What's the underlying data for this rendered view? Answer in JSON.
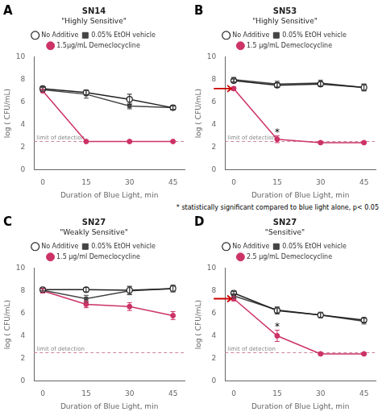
{
  "chart_data": [
    {
      "type": "line",
      "panel_label": "A",
      "title": "SN14",
      "subtitle": "\"Highly Sensitive\"",
      "xlabel": "Duration of Blue Light, min",
      "ylabel": "log ( CFU/mL)",
      "x": [
        0,
        15,
        30,
        45
      ],
      "xlim": [
        -3,
        49
      ],
      "xticks": [
        0,
        15,
        30,
        45
      ],
      "ylim": [
        0,
        10
      ],
      "yticks": [
        0,
        2,
        4,
        6,
        8,
        10
      ],
      "grid": false,
      "legend": "top",
      "series": [
        {
          "name": "No Additive",
          "color": "#222222",
          "marker": "open_circle",
          "values": [
            7.2,
            6.85,
            6.25,
            5.5
          ],
          "errors": [
            0.15,
            0.2,
            0.45,
            0.15
          ]
        },
        {
          "name": "0.05% EtOH vehicle",
          "color": "#444444",
          "marker": "square",
          "values": [
            7.1,
            6.7,
            5.65,
            5.5
          ],
          "errors": [
            0.2,
            0.35,
            0.25,
            0.2
          ]
        },
        {
          "name": "1.5μg/mL Demeclocycline",
          "color": "#cc3366",
          "marker": "circle",
          "values": [
            7.0,
            2.5,
            2.5,
            2.5
          ],
          "errors": [
            0.15,
            0.05,
            0.05,
            0.05
          ]
        }
      ],
      "limit_line": {
        "label": "limit of detection",
        "value": 2.5,
        "color": "#cc8899",
        "line_style": "dashed"
      },
      "annotations": [],
      "arrows": []
    },
    {
      "type": "line",
      "panel_label": "B",
      "title": "SN53",
      "subtitle": "\"Highly Sensitive\"",
      "xlabel": "Duration of Blue Light, min",
      "ylabel": "log ( CFU/mL)",
      "x": [
        0,
        15,
        30,
        45
      ],
      "xlim": [
        -3,
        49
      ],
      "xticks": [
        0,
        15,
        30,
        45
      ],
      "ylim": [
        0,
        10
      ],
      "yticks": [
        0,
        2,
        4,
        6,
        8,
        10
      ],
      "grid": false,
      "legend": "top",
      "series": [
        {
          "name": "No Additive",
          "color": "#222222",
          "marker": "open_circle",
          "values": [
            7.9,
            7.5,
            7.6,
            7.3
          ],
          "errors": [
            0.15,
            0.2,
            0.2,
            0.3
          ]
        },
        {
          "name": "0.05% EtOH vehicle",
          "color": "#444444",
          "marker": "square",
          "values": [
            8.0,
            7.6,
            7.7,
            7.3
          ],
          "errors": [
            0.2,
            0.25,
            0.25,
            0.3
          ]
        },
        {
          "name": "1.5 μg/mL Demeclocycline",
          "color": "#cc3366",
          "marker": "circle",
          "values": [
            7.2,
            2.7,
            2.4,
            2.4
          ],
          "errors": [
            0.15,
            0.3,
            0.1,
            0.1
          ]
        }
      ],
      "limit_line": {
        "label": "limit of detection",
        "value": 2.5,
        "color": "#cc8899",
        "line_style": "dashed"
      },
      "annotations": [
        {
          "text": "*",
          "x": 15,
          "series": "1.5 μg/mL Demeclocycline"
        }
      ],
      "arrows": [
        {
          "x": 0,
          "y": 7.2,
          "color": "#cc0000"
        }
      ],
      "footnote": "* statistically significant compared to blue light alone, p< 0.05"
    },
    {
      "type": "line",
      "panel_label": "C",
      "title": "SN27",
      "subtitle": "\"Weakly Sensitive\"",
      "xlabel": "Duration of Blue Light, min",
      "ylabel": "log ( CFU/mL)",
      "x": [
        0,
        15,
        30,
        45
      ],
      "xlim": [
        -3,
        49
      ],
      "xticks": [
        0,
        15,
        30,
        45
      ],
      "ylim": [
        0,
        10
      ],
      "yticks": [
        0,
        2,
        4,
        6,
        8,
        10
      ],
      "grid": false,
      "legend": "top",
      "series": [
        {
          "name": "No Additive",
          "color": "#222222",
          "marker": "open_circle",
          "values": [
            8.1,
            8.1,
            8.05,
            8.2
          ],
          "errors": [
            0.1,
            0.2,
            0.35,
            0.3
          ]
        },
        {
          "name": "0.05% EtOH vehicle",
          "color": "#444444",
          "marker": "square",
          "values": [
            8.05,
            7.3,
            8.0,
            8.2
          ],
          "errors": [
            0.15,
            0.3,
            0.35,
            0.25
          ]
        },
        {
          "name": "1.5 μg/ml Demeclocycline",
          "color": "#cc3366",
          "marker": "circle",
          "values": [
            8.0,
            6.8,
            6.6,
            5.8
          ],
          "errors": [
            0.2,
            0.3,
            0.35,
            0.35
          ]
        }
      ],
      "limit_line": {
        "label": "limit of detection",
        "value": 2.5,
        "color": "#cc8899",
        "line_style": "dashed"
      },
      "annotations": [],
      "arrows": []
    },
    {
      "type": "line",
      "panel_label": "D",
      "title": "SN27",
      "subtitle": "\"Sensitive\"",
      "xlabel": "Duration of Blue Light, min",
      "ylabel": "log ( CFU/mL)",
      "x": [
        0,
        15,
        30,
        45
      ],
      "xlim": [
        -3,
        49
      ],
      "xticks": [
        0,
        15,
        30,
        45
      ],
      "ylim": [
        0,
        10
      ],
      "yticks": [
        0,
        2,
        4,
        6,
        8,
        10
      ],
      "grid": false,
      "legend": "top",
      "series": [
        {
          "name": "No Additive",
          "color": "#222222",
          "marker": "open_circle",
          "values": [
            7.8,
            6.25,
            5.85,
            5.4
          ],
          "errors": [
            0.15,
            0.3,
            0.2,
            0.2
          ]
        },
        {
          "name": "0.05% EtOH vehicle",
          "color": "#444444",
          "marker": "square",
          "values": [
            7.55,
            6.3,
            5.85,
            5.3
          ],
          "errors": [
            0.2,
            0.25,
            0.25,
            0.25
          ]
        },
        {
          "name": "2.5 μg/mL Demeclocycline",
          "color": "#cc3366",
          "marker": "circle",
          "values": [
            7.3,
            4.0,
            2.4,
            2.4
          ],
          "errors": [
            0.2,
            0.5,
            0.1,
            0.1
          ]
        }
      ],
      "limit_line": {
        "label": "limit of detection",
        "value": 2.5,
        "color": "#cc8899",
        "line_style": "dashed"
      },
      "annotations": [
        {
          "text": "*",
          "x": 15,
          "series": "2.5 μg/mL Demeclocycline"
        }
      ],
      "arrows": [
        {
          "x": 0,
          "y": 7.3,
          "color": "#cc0000"
        }
      ]
    }
  ]
}
